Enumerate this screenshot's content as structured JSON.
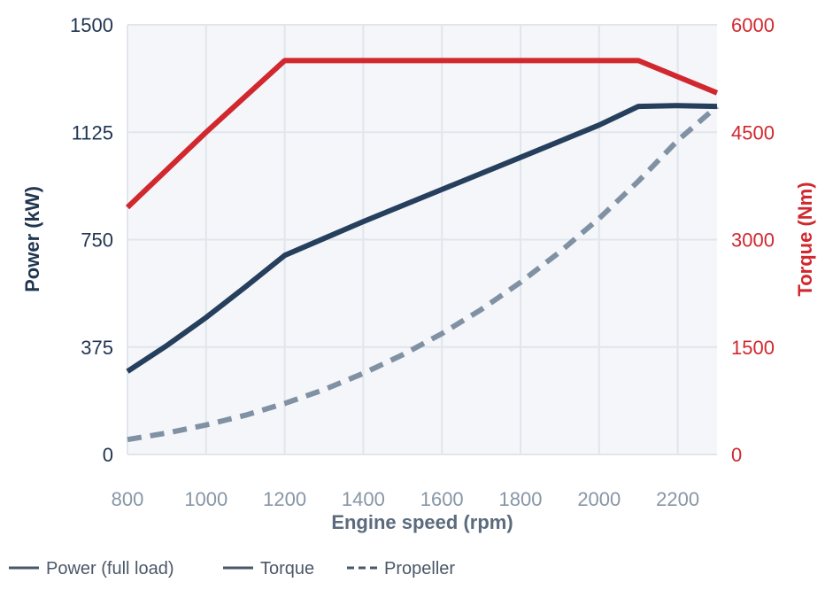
{
  "chart_data": {
    "type": "line",
    "xlabel": "Engine speed (rpm)",
    "ylabel_left": "Power (kW)",
    "ylabel_right": "Torque (Nm)",
    "xlim": [
      800,
      2300
    ],
    "ylim_left": [
      0,
      1500
    ],
    "ylim_right": [
      0,
      6000
    ],
    "x_ticks": [
      800,
      1000,
      1200,
      1400,
      1600,
      1800,
      2000,
      2200
    ],
    "y_ticks_left": [
      0,
      375,
      750,
      1125,
      1500
    ],
    "y_ticks_right": [
      0,
      1500,
      3000,
      4500,
      6000
    ],
    "grid": true,
    "legend_position": "bottom-left",
    "series": [
      {
        "name": "Power (full load)",
        "axis": "left",
        "color": "#253f5c",
        "style": "solid",
        "points": [
          [
            800,
            290
          ],
          [
            900,
            380
          ],
          [
            1000,
            478
          ],
          [
            1100,
            585
          ],
          [
            1200,
            695
          ],
          [
            1400,
            813
          ],
          [
            1600,
            925
          ],
          [
            1800,
            1037
          ],
          [
            2000,
            1150
          ],
          [
            2100,
            1215
          ],
          [
            2200,
            1218
          ],
          [
            2300,
            1215
          ]
        ]
      },
      {
        "name": "Torque",
        "axis": "right",
        "color": "#d0282e",
        "style": "solid",
        "points": [
          [
            800,
            3450
          ],
          [
            1000,
            4500
          ],
          [
            1200,
            5500
          ],
          [
            2100,
            5500
          ],
          [
            2300,
            5050
          ]
        ]
      },
      {
        "name": "Propeller",
        "axis": "left",
        "color": "#8191a4",
        "style": "dashed",
        "points": [
          [
            800,
            52
          ],
          [
            900,
            75
          ],
          [
            1000,
            103
          ],
          [
            1100,
            137
          ],
          [
            1200,
            178
          ],
          [
            1300,
            226
          ],
          [
            1400,
            283
          ],
          [
            1500,
            348
          ],
          [
            1600,
            422
          ],
          [
            1700,
            506
          ],
          [
            1800,
            601
          ],
          [
            1900,
            707
          ],
          [
            2000,
            824
          ],
          [
            2100,
            954
          ],
          [
            2200,
            1096
          ],
          [
            2300,
            1215
          ]
        ]
      }
    ]
  }
}
